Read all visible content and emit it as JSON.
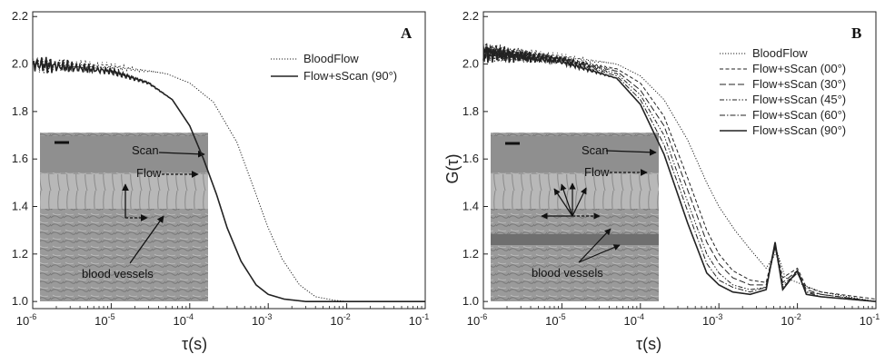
{
  "chart_data": [
    {
      "panel_label": "A",
      "type": "line",
      "xscale": "log",
      "xlabel": "τ(s)",
      "ylabel": "",
      "xlim": [
        1e-06,
        0.1
      ],
      "ylim": [
        0.97,
        2.22
      ],
      "x_ticks": [
        {
          "base": "10",
          "exp": "-6"
        },
        {
          "base": "10",
          "exp": "-5"
        },
        {
          "base": "10",
          "exp": "-4"
        },
        {
          "base": "10",
          "exp": "-3"
        },
        {
          "base": "10",
          "exp": "-2"
        },
        {
          "base": "10",
          "exp": "-1"
        }
      ],
      "y_ticks": [
        "1.0",
        "1.2",
        "1.4",
        "1.6",
        "1.8",
        "2.0",
        "2.2"
      ],
      "legend_position": "top-right",
      "series": [
        {
          "name": "BloodFlow",
          "style": "dotted",
          "points": [
            [
              1e-06,
              2.0
            ],
            [
              1e-05,
              1.99
            ],
            [
              5e-05,
              1.96
            ],
            [
              0.0001,
              1.92
            ],
            [
              0.0002,
              1.84
            ],
            [
              0.0004,
              1.67
            ],
            [
              0.0007,
              1.45
            ],
            [
              0.001,
              1.31
            ],
            [
              0.0015,
              1.18
            ],
            [
              0.0025,
              1.07
            ],
            [
              0.004,
              1.02
            ],
            [
              0.007,
              1.005
            ],
            [
              0.01,
              1.0
            ],
            [
              0.1,
              1.0
            ]
          ]
        },
        {
          "name": "Flow+sScan (90°)",
          "style": "solid",
          "points": [
            [
              1e-06,
              2.0
            ],
            [
              1e-05,
              1.97
            ],
            [
              3e-05,
              1.92
            ],
            [
              6e-05,
              1.85
            ],
            [
              0.0001,
              1.74
            ],
            [
              0.00015,
              1.6
            ],
            [
              0.00022,
              1.45
            ],
            [
              0.0003,
              1.31
            ],
            [
              0.00045,
              1.17
            ],
            [
              0.0007,
              1.07
            ],
            [
              0.001,
              1.03
            ],
            [
              0.0016,
              1.01
            ],
            [
              0.003,
              1.0
            ],
            [
              0.1,
              1.0
            ]
          ]
        }
      ],
      "inset_annotations": [
        "Scan",
        "Flow",
        "blood vessels"
      ]
    },
    {
      "panel_label": "B",
      "type": "line",
      "xscale": "log",
      "xlabel": "τ(s)",
      "ylabel": "G(τ)",
      "xlim": [
        1e-06,
        0.1
      ],
      "ylim": [
        0.97,
        2.22
      ],
      "x_ticks": [
        {
          "base": "10",
          "exp": "-6"
        },
        {
          "base": "10",
          "exp": "-5"
        },
        {
          "base": "10",
          "exp": "-4"
        },
        {
          "base": "10",
          "exp": "-3"
        },
        {
          "base": "10",
          "exp": "-2"
        },
        {
          "base": "10",
          "exp": "-1"
        }
      ],
      "y_ticks": [
        "1.0",
        "1.2",
        "1.4",
        "1.6",
        "1.8",
        "2.0",
        "2.2"
      ],
      "legend_position": "top-right",
      "series": [
        {
          "name": "BloodFlow",
          "style": "dotted",
          "points": [
            [
              1e-06,
              2.05
            ],
            [
              1e-05,
              2.03
            ],
            [
              5e-05,
              2.0
            ],
            [
              0.0001,
              1.95
            ],
            [
              0.0002,
              1.85
            ],
            [
              0.0004,
              1.68
            ],
            [
              0.0007,
              1.5
            ],
            [
              0.001,
              1.4
            ],
            [
              0.0016,
              1.3
            ],
            [
              0.0025,
              1.22
            ],
            [
              0.004,
              1.14
            ],
            [
              0.0055,
              1.21
            ],
            [
              0.007,
              1.1
            ],
            [
              0.01,
              1.08
            ],
            [
              0.02,
              1.04
            ],
            [
              0.1,
              1.0
            ]
          ]
        },
        {
          "name": "Flow+sScan (00°)",
          "style": "dashed",
          "points": [
            [
              1e-06,
              2.05
            ],
            [
              1e-05,
              2.02
            ],
            [
              5e-05,
              1.98
            ],
            [
              0.0001,
              1.92
            ],
            [
              0.0002,
              1.78
            ],
            [
              0.0004,
              1.52
            ],
            [
              0.0007,
              1.3
            ],
            [
              0.001,
              1.2
            ],
            [
              0.0015,
              1.13
            ],
            [
              0.0025,
              1.09
            ],
            [
              0.004,
              1.08
            ],
            [
              0.0052,
              1.24
            ],
            [
              0.0065,
              1.1
            ],
            [
              0.01,
              1.14
            ],
            [
              0.013,
              1.06
            ],
            [
              0.02,
              1.04
            ],
            [
              0.1,
              1.01
            ]
          ]
        },
        {
          "name": "Flow+sScan (30°)",
          "style": "longdash",
          "points": [
            [
              1e-06,
              2.05
            ],
            [
              1e-05,
              2.02
            ],
            [
              5e-05,
              1.97
            ],
            [
              0.0001,
              1.89
            ],
            [
              0.0002,
              1.74
            ],
            [
              0.0004,
              1.47
            ],
            [
              0.0007,
              1.25
            ],
            [
              0.001,
              1.16
            ],
            [
              0.0015,
              1.1
            ],
            [
              0.0025,
              1.07
            ],
            [
              0.004,
              1.07
            ],
            [
              0.0052,
              1.23
            ],
            [
              0.0065,
              1.08
            ],
            [
              0.01,
              1.13
            ],
            [
              0.013,
              1.05
            ],
            [
              0.02,
              1.03
            ],
            [
              0.1,
              1.0
            ]
          ]
        },
        {
          "name": "Flow+sScan (45°)",
          "style": "dashdotdot",
          "points": [
            [
              1e-06,
              2.05
            ],
            [
              1e-05,
              2.02
            ],
            [
              5e-05,
              1.96
            ],
            [
              0.0001,
              1.87
            ],
            [
              0.0002,
              1.7
            ],
            [
              0.0004,
              1.42
            ],
            [
              0.0007,
              1.2
            ],
            [
              0.001,
              1.12
            ],
            [
              0.0015,
              1.07
            ],
            [
              0.0025,
              1.05
            ],
            [
              0.004,
              1.06
            ],
            [
              0.0052,
              1.23
            ],
            [
              0.0065,
              1.07
            ],
            [
              0.01,
              1.12
            ],
            [
              0.013,
              1.04
            ],
            [
              0.02,
              1.03
            ],
            [
              0.1,
              1.0
            ]
          ]
        },
        {
          "name": "Flow+sScan (60°)",
          "style": "dashdot",
          "points": [
            [
              1e-06,
              2.05
            ],
            [
              1e-05,
              2.02
            ],
            [
              5e-05,
              1.95
            ],
            [
              0.0001,
              1.85
            ],
            [
              0.0002,
              1.66
            ],
            [
              0.0004,
              1.38
            ],
            [
              0.0007,
              1.16
            ],
            [
              0.001,
              1.09
            ],
            [
              0.0015,
              1.06
            ],
            [
              0.0025,
              1.04
            ],
            [
              0.004,
              1.06
            ],
            [
              0.0052,
              1.23
            ],
            [
              0.0065,
              1.06
            ],
            [
              0.01,
              1.12
            ],
            [
              0.013,
              1.04
            ],
            [
              0.02,
              1.02
            ],
            [
              0.1,
              1.0
            ]
          ]
        },
        {
          "name": "Flow+sScan (90°)",
          "style": "solid",
          "points": [
            [
              1e-06,
              2.05
            ],
            [
              1e-05,
              2.01
            ],
            [
              5e-05,
              1.94
            ],
            [
              0.0001,
              1.83
            ],
            [
              0.0002,
              1.62
            ],
            [
              0.0004,
              1.33
            ],
            [
              0.0007,
              1.12
            ],
            [
              0.001,
              1.07
            ],
            [
              0.0015,
              1.04
            ],
            [
              0.0025,
              1.03
            ],
            [
              0.004,
              1.05
            ],
            [
              0.0052,
              1.25
            ],
            [
              0.0065,
              1.05
            ],
            [
              0.01,
              1.13
            ],
            [
              0.013,
              1.03
            ],
            [
              0.02,
              1.02
            ],
            [
              0.1,
              1.0
            ]
          ]
        }
      ],
      "inset_annotations": [
        "Scan",
        "Flow",
        "blood vessels"
      ]
    }
  ]
}
